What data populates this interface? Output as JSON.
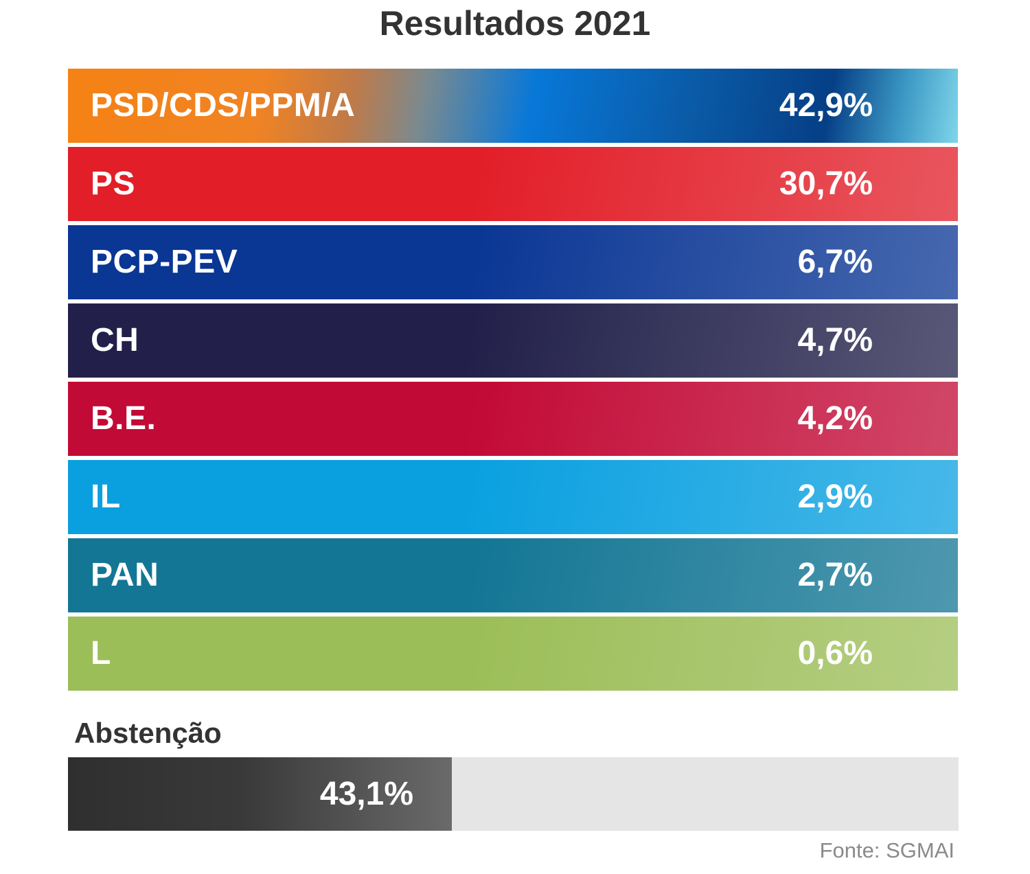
{
  "chart_data": {
    "type": "bar",
    "title": "Resultados 2021",
    "categories": [
      "PSD/CDS/PPM/A",
      "PS",
      "PCP-PEV",
      "CH",
      "B.E.",
      "IL",
      "PAN",
      "L"
    ],
    "values": [
      42.9,
      30.7,
      6.7,
      4.7,
      4.2,
      2.9,
      2.7,
      0.6
    ],
    "value_labels": [
      "42,9%",
      "30,7%",
      "6,7%",
      "4,7%",
      "4,2%",
      "2,9%",
      "2,7%",
      "0,6%"
    ],
    "colors": [
      "#f08324",
      "#e21e28",
      "#0a3694",
      "#22204a",
      "#c20a36",
      "#0aa0e0",
      "#137694",
      "#9cbe58"
    ],
    "abstention": {
      "label": "Abstenção",
      "value": 43.1,
      "value_label": "43,1%",
      "max": 100,
      "fill_color": "#333333",
      "track_color": "#e5e5e5"
    },
    "source": "Fonte: SGMAI",
    "xlabel": "",
    "ylabel": ""
  }
}
